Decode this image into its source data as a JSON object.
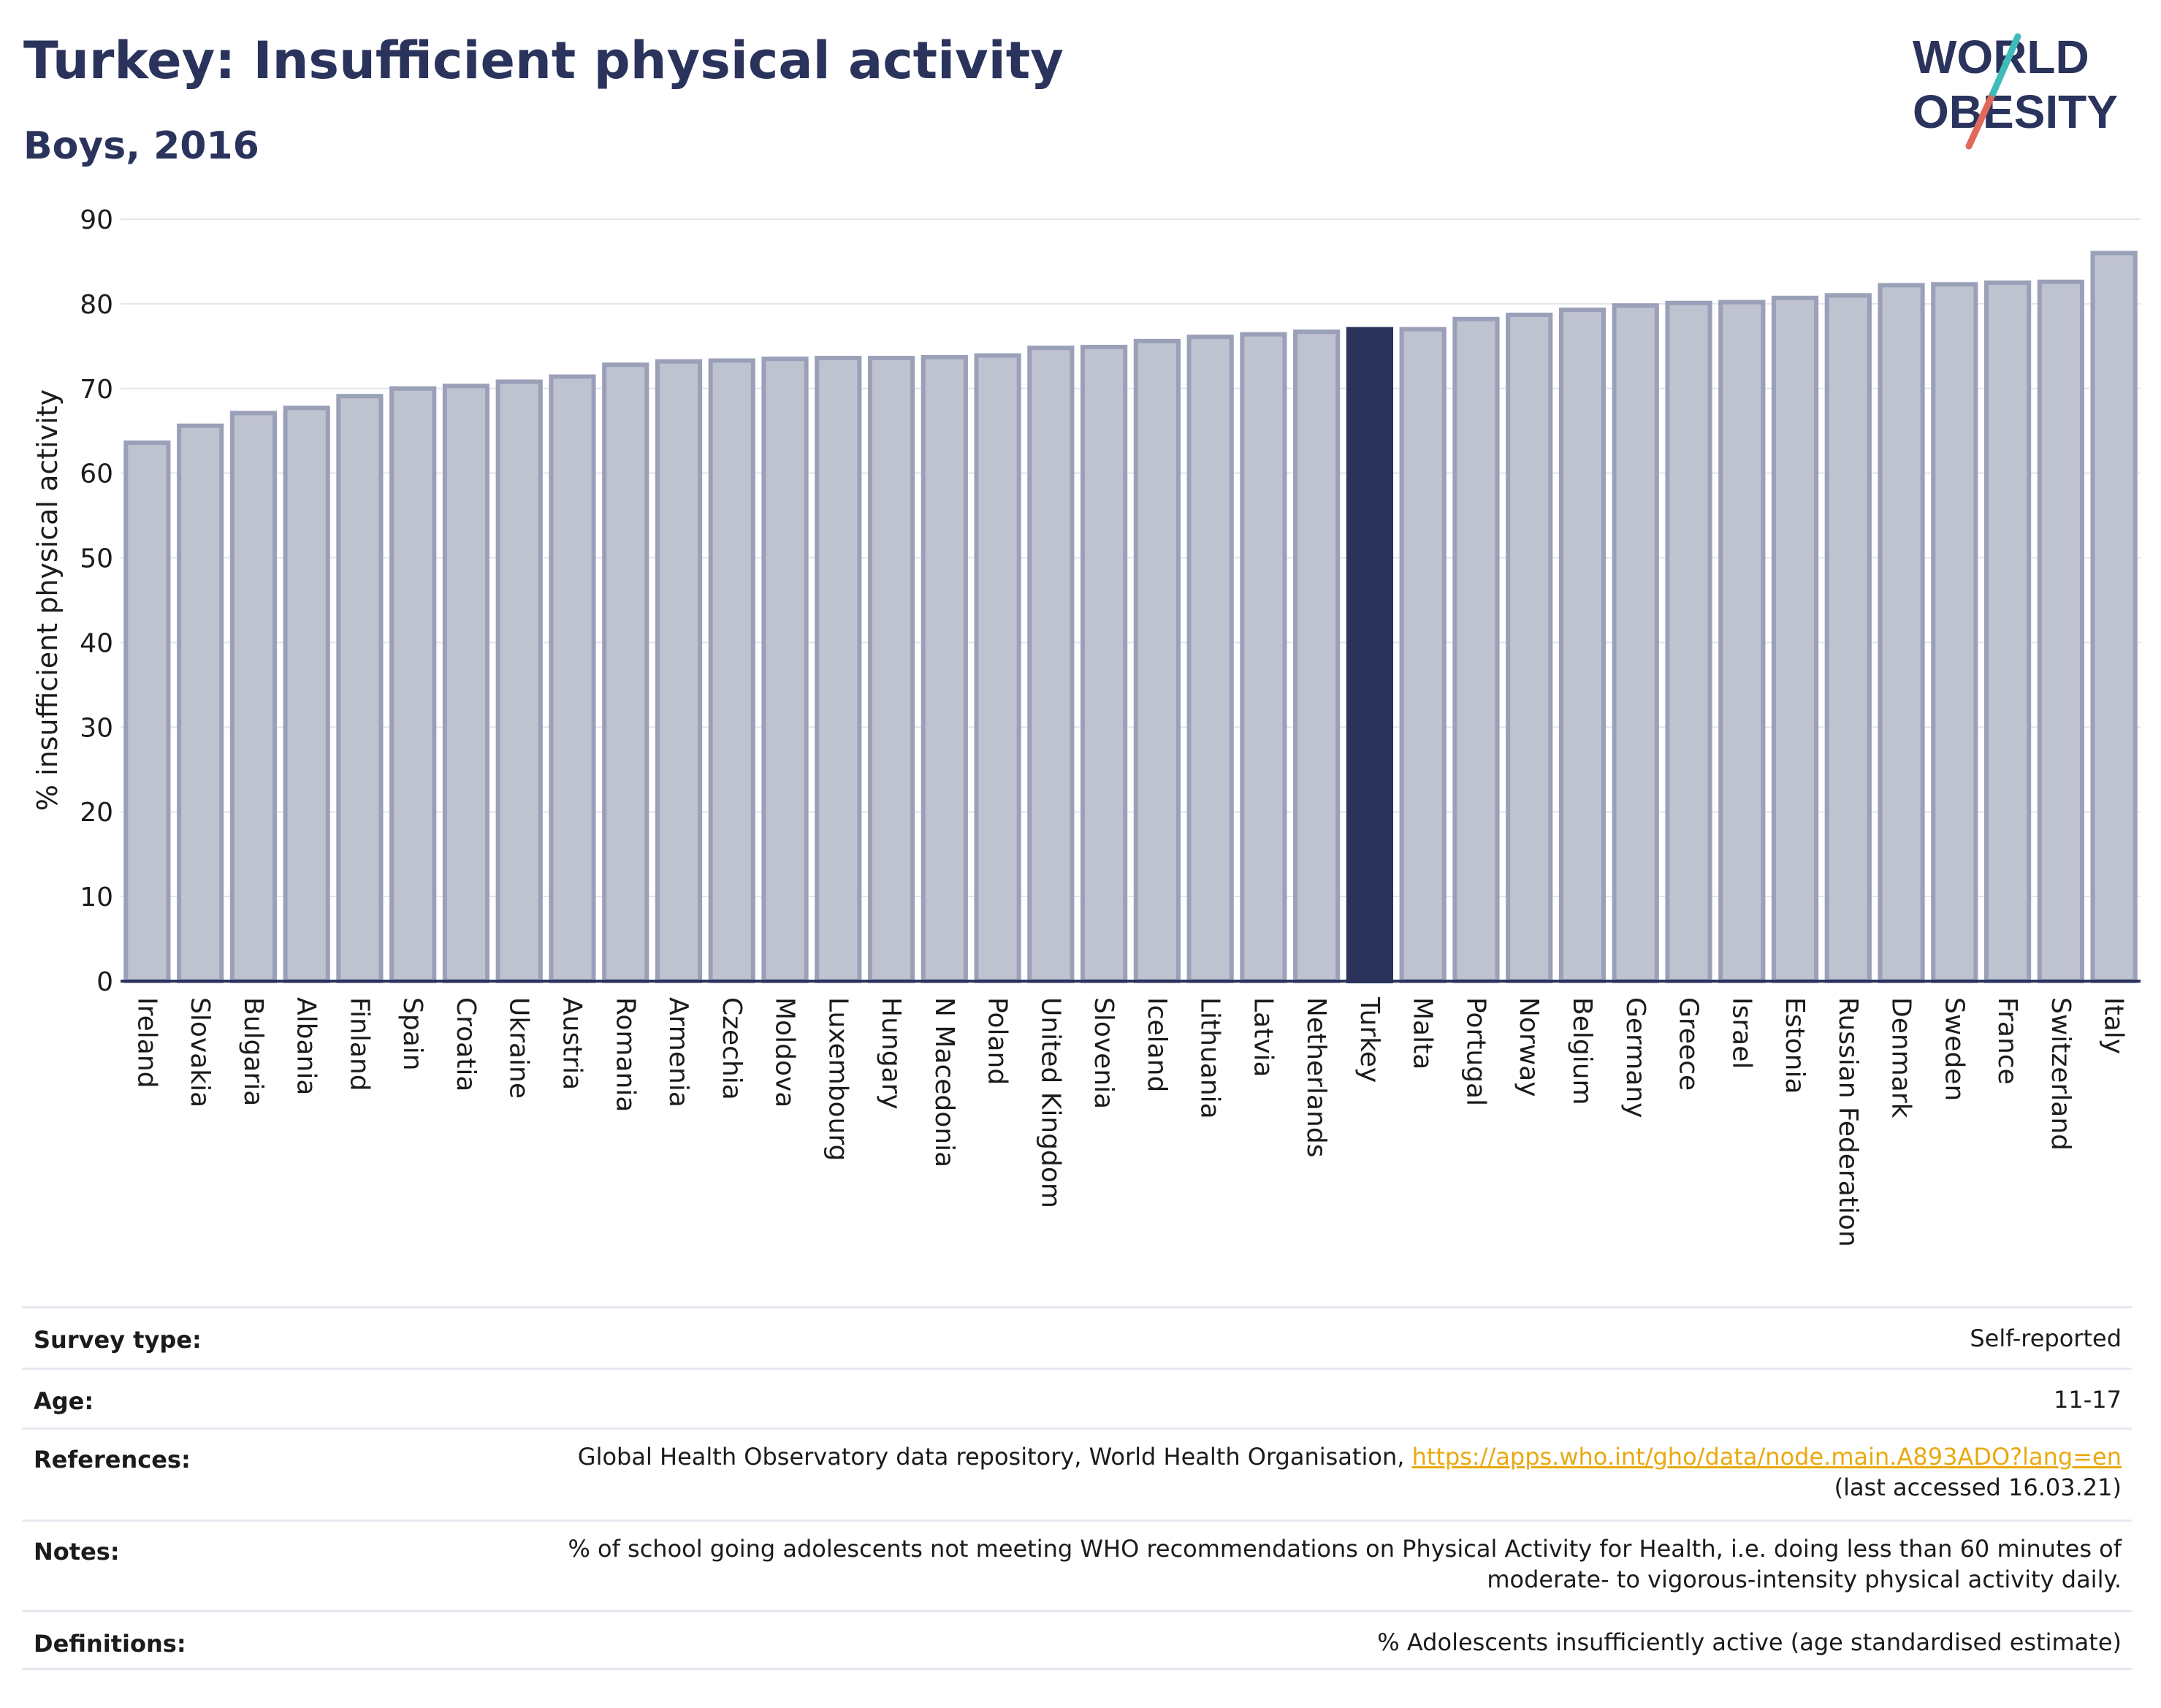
{
  "header": {
    "title": "Turkey: Insufficient physical activity",
    "subtitle": "Boys, 2016"
  },
  "logo": {
    "line1": "WORLD",
    "line2": "OBESITY",
    "color_dark": "#2a335c",
    "color_teal": "#3fbcb9",
    "color_coral": "#e0695a"
  },
  "chart_data": {
    "type": "bar",
    "ylabel": "% insufficient physical activity",
    "ylim": [
      0,
      90
    ],
    "yticks": [
      0,
      10,
      20,
      30,
      40,
      50,
      60,
      70,
      80,
      90
    ],
    "grid": true,
    "highlight": "Turkey",
    "colors": {
      "bar": "#bfc2cf",
      "bar_stroke": "#9aa0b8",
      "highlight": "#2a335c",
      "grid": "#e3e5ec",
      "axis": "#2a335c"
    },
    "categories": [
      "Ireland",
      "Slovakia",
      "Bulgaria",
      "Albania",
      "Finland",
      "Spain",
      "Croatia",
      "Ukraine",
      "Austria",
      "Romania",
      "Armenia",
      "Czechia",
      "Moldova",
      "Luxembourg",
      "Hungary",
      "N Macedonia",
      "Poland",
      "United Kingdom",
      "Slovenia",
      "Iceland",
      "Lithuania",
      "Latvia",
      "Netherlands",
      "Turkey",
      "Malta",
      "Portugal",
      "Norway",
      "Belgium",
      "Germany",
      "Greece",
      "Israel",
      "Estonia",
      "Russian Federation",
      "Denmark",
      "Sweden",
      "France",
      "Switzerland",
      "Italy"
    ],
    "values": [
      63.6,
      65.6,
      67.1,
      67.7,
      69.1,
      70.0,
      70.3,
      70.8,
      71.4,
      72.8,
      73.2,
      73.3,
      73.5,
      73.6,
      73.6,
      73.7,
      73.9,
      74.8,
      74.9,
      75.6,
      76.1,
      76.4,
      76.7,
      77.0,
      77.0,
      78.2,
      78.7,
      79.3,
      79.8,
      80.1,
      80.2,
      80.7,
      81.0,
      82.2,
      82.3,
      82.5,
      82.6,
      86.0
    ]
  },
  "info": {
    "survey_type": {
      "label": "Survey type:",
      "value": "Self-reported"
    },
    "age": {
      "label": "Age:",
      "value": "11-17"
    },
    "references": {
      "label": "References:",
      "text": "Global Health Observatory data repository, World Health Organisation, ",
      "link": "https://apps.who.int/gho/data/node.main.A893ADO?lang=en",
      "accessed": "(last accessed 16.03.21)"
    },
    "notes": {
      "label": "Notes:",
      "line1": "% of school going adolescents not meeting WHO recommendations on Physical Activity for Health, i.e. doing less than 60 minutes of",
      "line2": "moderate- to vigorous-intensity physical activity daily."
    },
    "definitions": {
      "label": "Definitions:",
      "value": "% Adolescents insufficiently active (age standardised estimate)"
    }
  }
}
